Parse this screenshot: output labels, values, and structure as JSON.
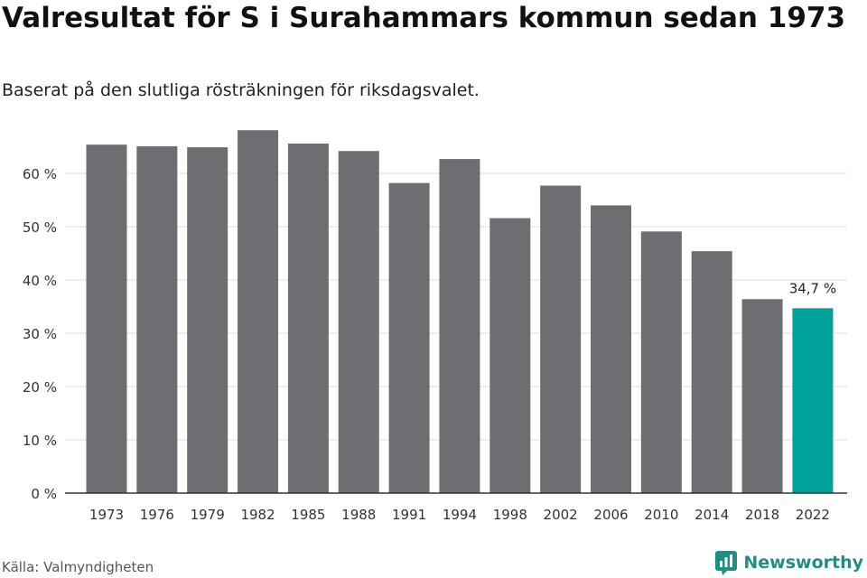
{
  "title": "Valresultat för S i Surahammars kommun sedan 1973",
  "subtitle": "Baserat på den slutliga rösträkningen för riksdagsvalet.",
  "source": "Källa: Valmyndigheten",
  "brand": {
    "name": "Newsworthy",
    "icon": "newsworthy-logo-icon",
    "color": "#1f8f82"
  },
  "colors": {
    "bar": "#6e6d72",
    "highlight": "#00a39a",
    "grid": "#dddddd",
    "axis": "#333333",
    "tick_text": "#333333"
  },
  "chart_data": {
    "type": "bar",
    "title": "Valresultat för S i Surahammars kommun sedan 1973",
    "subtitle": "Baserat på den slutliga rösträkningen för riksdagsvalet.",
    "xlabel": "",
    "ylabel": "",
    "categories": [
      "1973",
      "1976",
      "1979",
      "1982",
      "1985",
      "1988",
      "1991",
      "1994",
      "1998",
      "2002",
      "2006",
      "2010",
      "2014",
      "2018",
      "2022"
    ],
    "values": [
      65.4,
      65.1,
      64.9,
      68.1,
      65.6,
      64.2,
      58.2,
      62.7,
      51.6,
      57.7,
      54.0,
      49.1,
      45.4,
      36.4,
      34.7
    ],
    "ylim": [
      0,
      70
    ],
    "yticks": [
      0,
      10,
      20,
      30,
      40,
      50,
      60
    ],
    "ytick_labels": [
      "0 %",
      "10 %",
      "20 %",
      "30 %",
      "40 %",
      "50 %",
      "60 %"
    ],
    "highlight_index": 14,
    "annotation": {
      "index": 14,
      "text": "34,7 %"
    },
    "grid": true,
    "legend": "none"
  }
}
